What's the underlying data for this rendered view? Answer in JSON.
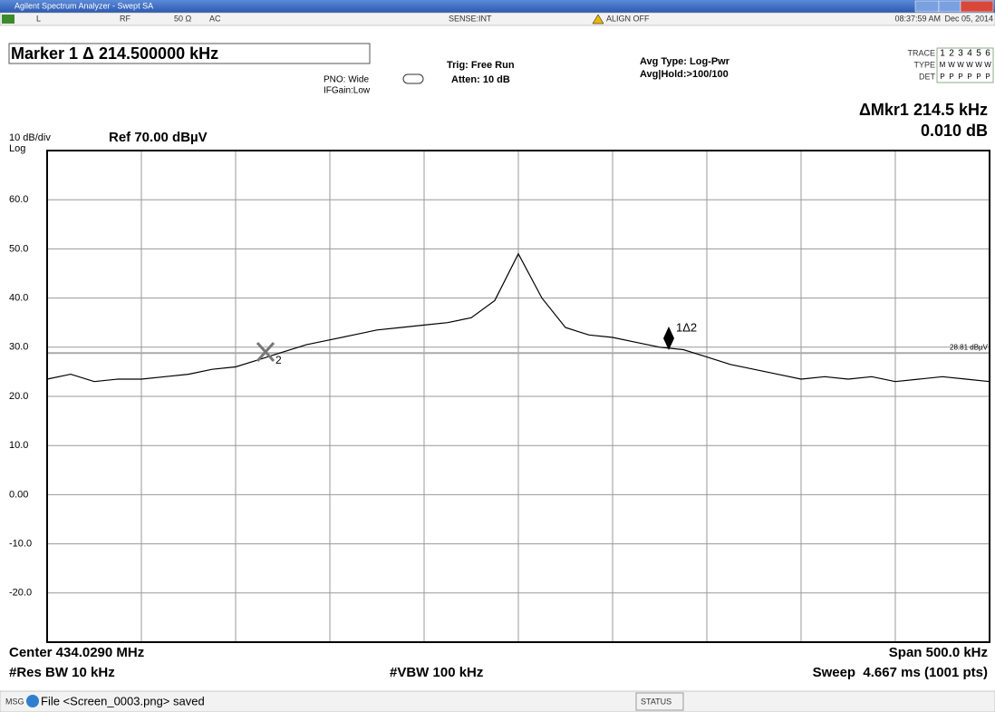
{
  "window": {
    "title": "Agilent Spectrum Analyzer - Swept SA"
  },
  "status_row": {
    "mode": "L",
    "input": "RF",
    "impedance": "50 Ω",
    "coupling": "AC",
    "sense": "SENSE:INT",
    "align": "ALIGN OFF",
    "time": "08:37:59 AM",
    "date": "Dec 05, 2014"
  },
  "settings": {
    "marker": "Marker 1 Δ 214.500000 kHz",
    "pno": "PNO: Wide",
    "ifgain": "IFGain:Low",
    "trig": "Trig: Free Run",
    "atten": "Atten: 10 dB",
    "avg_type": "Avg Type: Log-Pwr",
    "avg_hold": "Avg|Hold:>100/100"
  },
  "trace_panel": {
    "trace_label": "TRACE",
    "traces": [
      "1",
      "2",
      "3",
      "4",
      "5",
      "6"
    ],
    "type_label": "TYPE",
    "types": [
      "M",
      "W",
      "W",
      "W",
      "W",
      "W"
    ],
    "det_label": "DET",
    "dets": [
      "P",
      "P",
      "P",
      "P",
      "P",
      "P"
    ]
  },
  "readout": {
    "delta": "ΔMkr1 214.5 kHz",
    "value": "0.010 dB"
  },
  "scale": {
    "per_div": "10 dB/div",
    "mode": "Log",
    "ref": "Ref 70.00 dBµV"
  },
  "chart_data": {
    "type": "line",
    "color": "#000000",
    "ylim": [
      -30,
      70
    ],
    "yticks": [
      {
        "value": 60,
        "label": "60.0"
      },
      {
        "value": 50,
        "label": "50.0"
      },
      {
        "value": 40,
        "label": "40.0"
      },
      {
        "value": 30,
        "label": "30.0"
      },
      {
        "value": 20,
        "label": "20.0"
      },
      {
        "value": 10,
        "label": "10.0"
      },
      {
        "value": 0,
        "label": "0.00"
      },
      {
        "value": -10,
        "label": "-10.0"
      },
      {
        "value": -20,
        "label": "-20.0"
      }
    ],
    "grid": true,
    "values": [
      23.5,
      24.5,
      23,
      23.5,
      23.5,
      24,
      24.5,
      25.5,
      26,
      27.5,
      29,
      30.5,
      31.5,
      32.5,
      33.5,
      34,
      34.5,
      35,
      36,
      39.5,
      49,
      40,
      34,
      32.5,
      32,
      31,
      30,
      29.5,
      28,
      26.5,
      25.5,
      24.5,
      23.5,
      24,
      23.5,
      24,
      23,
      23.5,
      24,
      23.5,
      23
    ],
    "display_line": {
      "value": 28.81,
      "label": "28.81 dBµV"
    },
    "markers": [
      {
        "label": "1Δ2"
      },
      {
        "label": "2"
      }
    ]
  },
  "footer": {
    "center": "Center 434.0290 MHz",
    "span": "Span 500.0 kHz",
    "rbw": "#Res BW 10 kHz",
    "vbw": "#VBW 100 kHz",
    "sweep": "Sweep  4.667 ms (1001 pts)"
  },
  "statusbar": {
    "msg": "MSG",
    "message": "File <Screen_0003.png> saved",
    "status": "STATUS"
  }
}
